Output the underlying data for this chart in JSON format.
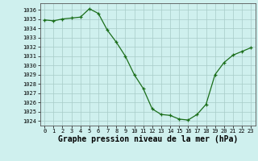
{
  "x": [
    0,
    1,
    2,
    3,
    4,
    5,
    6,
    7,
    8,
    9,
    10,
    11,
    12,
    13,
    14,
    15,
    16,
    17,
    18,
    19,
    20,
    21,
    22,
    23
  ],
  "y": [
    1034.9,
    1034.8,
    1035.0,
    1035.1,
    1035.2,
    1036.1,
    1035.6,
    1033.8,
    1032.5,
    1031.0,
    1029.0,
    1027.5,
    1025.3,
    1024.7,
    1024.6,
    1024.2,
    1024.1,
    1024.7,
    1025.8,
    1029.0,
    1030.3,
    1031.1,
    1031.5,
    1031.9
  ],
  "ylim_min": 1023.5,
  "ylim_max": 1036.7,
  "yticks": [
    1024,
    1025,
    1026,
    1027,
    1028,
    1029,
    1030,
    1031,
    1032,
    1033,
    1034,
    1035,
    1036
  ],
  "xlim_min": -0.5,
  "xlim_max": 23.5,
  "xticks": [
    0,
    1,
    2,
    3,
    4,
    5,
    6,
    7,
    8,
    9,
    10,
    11,
    12,
    13,
    14,
    15,
    16,
    17,
    18,
    19,
    20,
    21,
    22,
    23
  ],
  "xlabel": "Graphe pression niveau de la mer (hPa)",
  "line_color": "#1a6e1a",
  "marker": "+",
  "marker_color": "#1a6e1a",
  "bg_color": "#cff0ee",
  "grid_color": "#a8ccc8",
  "tick_fontsize": 5.0,
  "label_fontsize": 7.0,
  "linewidth": 0.9,
  "markersize": 3.5,
  "markeredgewidth": 0.9
}
